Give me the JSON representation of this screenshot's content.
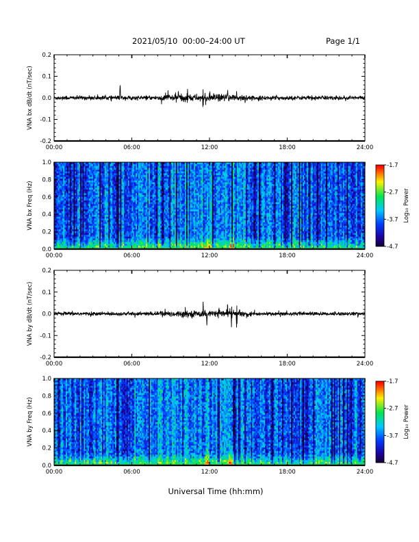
{
  "header": {
    "title": "2021/05/10  00:00–24:00 UT",
    "page": "Page 1/1"
  },
  "x_axis_label": "Universal Time (hh:mm)",
  "chart_data": [
    {
      "type": "line",
      "ylabel": "VNA bx dB/dt (nT/sec)",
      "xlim": [
        0,
        24
      ],
      "ylim": [
        -0.2,
        0.2
      ],
      "xticks": [
        "00:00",
        "06:00",
        "12:00",
        "18:00",
        "24:00"
      ],
      "yticks": [
        "-0.2",
        "-0.1",
        "0.0",
        "0.1",
        "0.2"
      ],
      "series": [
        {
          "values_description_hours": [
            0,
            24
          ],
          "baseline": 0.0,
          "noise": 0.008,
          "activity": [
            [
              5.1,
              0.07
            ],
            [
              8.8,
              0.035
            ],
            [
              9.6,
              0.03
            ],
            [
              10.3,
              0.035
            ],
            [
              11.5,
              -0.07
            ],
            [
              12.0,
              0.03
            ],
            [
              13.4,
              0.035
            ],
            [
              14.1,
              0.03
            ],
            [
              19.9,
              0.025
            ]
          ]
        }
      ]
    },
    {
      "type": "heatmap",
      "ylabel": "VNA bx Freq (Hz)",
      "xlim": [
        0,
        24
      ],
      "ylim": [
        0.0,
        1.0
      ],
      "xticks": [
        "00:00",
        "06:00",
        "12:00",
        "18:00",
        "24:00"
      ],
      "yticks": [
        "0.0",
        "0.2",
        "0.4",
        "0.6",
        "0.8",
        "1.0"
      ],
      "colorbar": {
        "label": "Log₁₀ Power",
        "ticks": [
          "-1.7",
          "-2.7",
          "-3.7",
          "-4.7"
        ],
        "range": [
          -4.7,
          -1.7
        ]
      }
    },
    {
      "type": "line",
      "ylabel": "VNA by dB/dt (nT/sec)",
      "xlim": [
        0,
        24
      ],
      "ylim": [
        -0.2,
        0.2
      ],
      "xticks": [
        "00:00",
        "06:00",
        "12:00",
        "18:00",
        "24:00"
      ],
      "yticks": [
        "-0.2",
        "-0.1",
        "0.0",
        "0.1",
        "0.2"
      ],
      "series": [
        {
          "baseline": 0.0,
          "noise": 0.007,
          "activity": [
            [
              11.5,
              0.05
            ],
            [
              11.8,
              -0.05
            ],
            [
              13.4,
              0.05
            ],
            [
              13.7,
              -0.08
            ],
            [
              14.1,
              -0.08
            ]
          ]
        }
      ]
    },
    {
      "type": "heatmap",
      "ylabel": "VNA by Freq (Hz)",
      "xlim": [
        0,
        24
      ],
      "ylim": [
        0.0,
        1.0
      ],
      "xticks": [
        "00:00",
        "06:00",
        "12:00",
        "18:00",
        "24:00"
      ],
      "yticks": [
        "0.0",
        "0.2",
        "0.4",
        "0.6",
        "0.8",
        "1.0"
      ],
      "colorbar": {
        "label": "Log₁₀ Power",
        "ticks": [
          "-1.7",
          "-2.7",
          "-3.7",
          "-4.7"
        ],
        "range": [
          -4.7,
          -1.7
        ]
      }
    }
  ]
}
